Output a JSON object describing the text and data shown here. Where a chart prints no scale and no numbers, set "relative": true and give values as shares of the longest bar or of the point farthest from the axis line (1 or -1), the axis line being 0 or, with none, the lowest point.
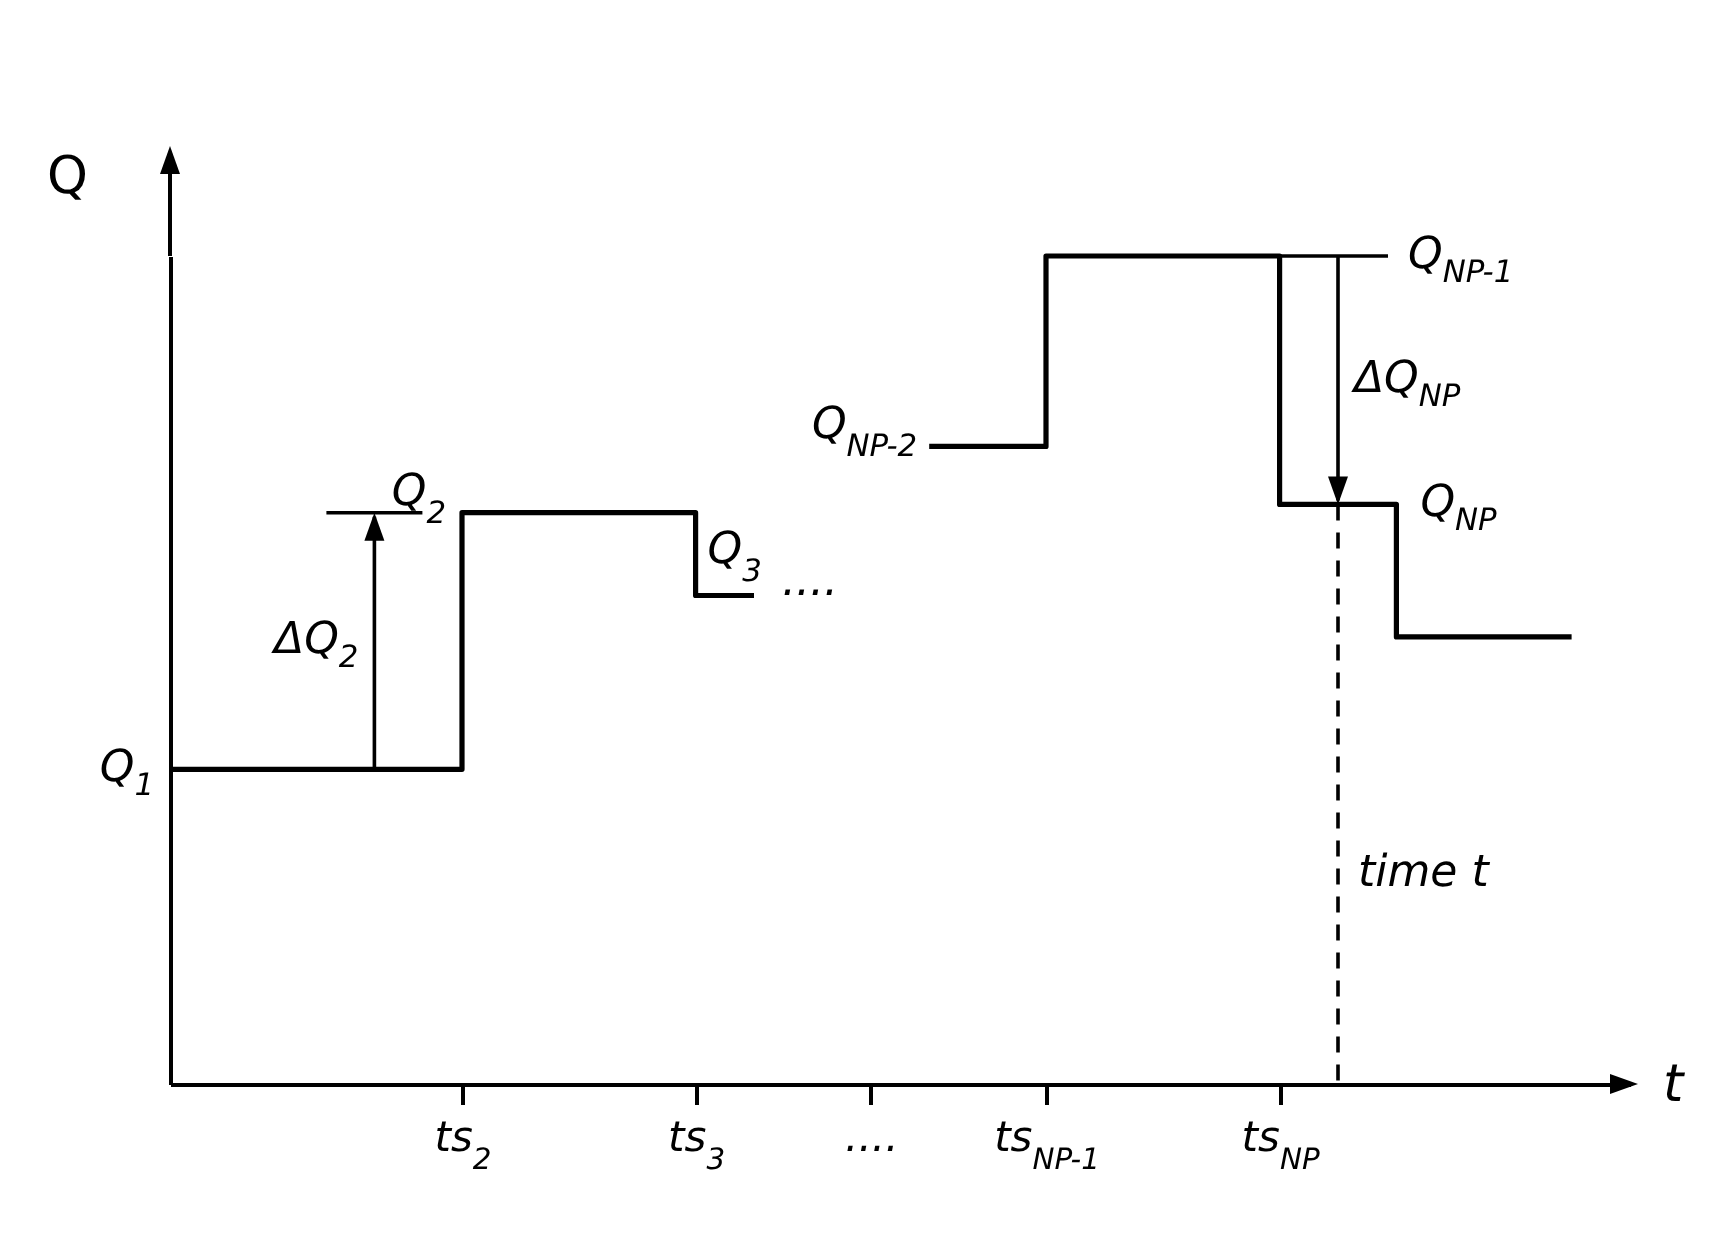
{
  "chart_data": {
    "type": "step",
    "relative": true,
    "xlabel": "t",
    "ylabel": "Q",
    "categories": [
      null,
      null,
      null,
      null,
      null,
      "ts$_{2}$",
      null,
      null,
      null,
      "ts$_{3}$",
      null,
      null,
      "....",
      null,
      null,
      "ts$_{NP-1}$",
      null,
      null,
      null,
      "ts$_{NP}$",
      null,
      null,
      null,
      null,
      null,
      null
    ],
    "series": [
      {
        "color": "#000000",
        "values": [
          0.38,
          0.38,
          0.38,
          0.38,
          0.38,
          0.69,
          0.69,
          0.69,
          0.69,
          0.59,
          0.59,
          null,
          null,
          0.77,
          0.77,
          1,
          1,
          1,
          1,
          0.7,
          0.7,
          0.54,
          0.54,
          0.54,
          0.54,
          null
        ]
      }
    ],
    "line_style": "solid",
    "grid": false,
    "annotations": [
      "Q$_{1}$",
      "Q$_{2}$",
      "ΔQ$_{2}$",
      "Q$_{3}$",
      "....",
      "Q$_{NP-2}$",
      "Q$_{NP-1}$",
      "ΔQ$_{NP}$",
      "Q$_{NP}$",
      "time t"
    ]
  }
}
